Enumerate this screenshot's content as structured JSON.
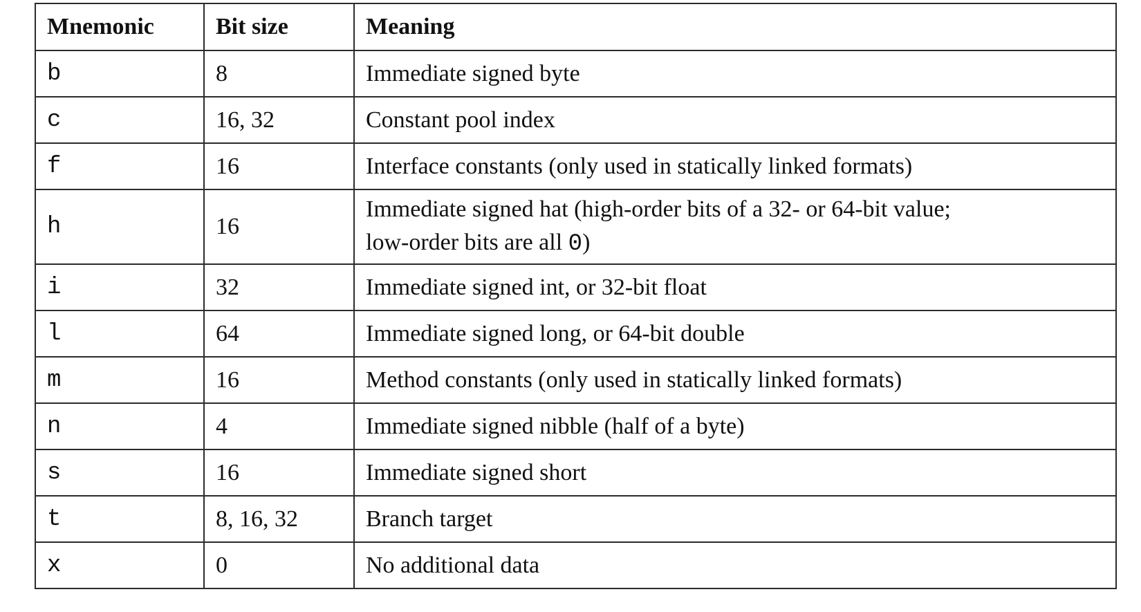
{
  "table": {
    "headers": [
      "Mnemonic",
      "Bit size",
      "Meaning"
    ],
    "rows": [
      {
        "mnemonic": "b",
        "bits": "8",
        "meaning": "Immediate signed byte"
      },
      {
        "mnemonic": "c",
        "bits": "16, 32",
        "meaning": "Constant pool index"
      },
      {
        "mnemonic": "f",
        "bits": "16",
        "meaning": "Interface constants (only used in statically linked formats)"
      },
      {
        "mnemonic": "h",
        "bits": "16",
        "meaning": "Immediate signed hat (high-order bits of a 32- or 64-bit value;",
        "meaning_line2": "low-order bits are all ",
        "meaning_code": "0",
        "meaning_end": ")"
      },
      {
        "mnemonic": "i",
        "bits": "32",
        "meaning": "Immediate signed int, or 32-bit float"
      },
      {
        "mnemonic": "l",
        "bits": "64",
        "meaning": "Immediate signed long, or 64-bit double"
      },
      {
        "mnemonic": "m",
        "bits": "16",
        "meaning": "Method constants (only used in statically linked formats)"
      },
      {
        "mnemonic": "n",
        "bits": "4",
        "meaning": "Immediate signed nibble (half of a byte)"
      },
      {
        "mnemonic": "s",
        "bits": "16",
        "meaning": "Immediate signed short"
      },
      {
        "mnemonic": "t",
        "bits": "8, 16, 32",
        "meaning": "Branch target"
      },
      {
        "mnemonic": "x",
        "bits": "0",
        "meaning": "No additional data"
      }
    ]
  }
}
